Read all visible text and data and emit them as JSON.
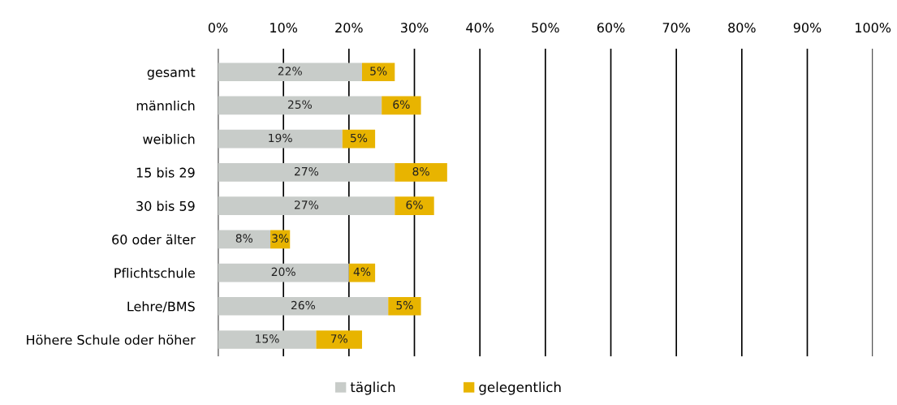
{
  "chart_data": {
    "type": "bar",
    "orientation": "horizontal",
    "stacked": true,
    "categories": [
      "gesamt",
      "männlich",
      "weiblich",
      "15 bis 29",
      "30 bis 59",
      "60 oder älter",
      "Pflichtschule",
      "Lehre/BMS",
      "Höhere Schule oder höher"
    ],
    "series": [
      {
        "name": "täglich",
        "color": "#c8ccc9",
        "values": [
          22,
          25,
          19,
          27,
          27,
          8,
          20,
          26,
          15
        ],
        "value_labels": [
          "22%",
          "25%",
          "19%",
          "27%",
          "27%",
          "8%",
          "20%",
          "26%",
          "15%"
        ]
      },
      {
        "name": "gelegentlich",
        "color": "#e8b400",
        "values": [
          5,
          6,
          5,
          8,
          6,
          3,
          4,
          5,
          7
        ],
        "value_labels": [
          "5%",
          "6%",
          "5%",
          "8%",
          "6%",
          "3%",
          "4%",
          "5%",
          "7%"
        ]
      }
    ],
    "xlim": [
      0,
      100
    ],
    "xticks": [
      {
        "value": 0,
        "label": "0%"
      },
      {
        "value": 10,
        "label": "10%"
      },
      {
        "value": 20,
        "label": "20%"
      },
      {
        "value": 30,
        "label": "30%"
      },
      {
        "value": 40,
        "label": "40%"
      },
      {
        "value": 50,
        "label": "50%"
      },
      {
        "value": 60,
        "label": "60%"
      },
      {
        "value": 70,
        "label": "70%"
      },
      {
        "value": 80,
        "label": "80%"
      },
      {
        "value": 90,
        "label": "90%"
      },
      {
        "value": 100,
        "label": "100%"
      }
    ],
    "grid": "x",
    "legend": "bottom"
  }
}
